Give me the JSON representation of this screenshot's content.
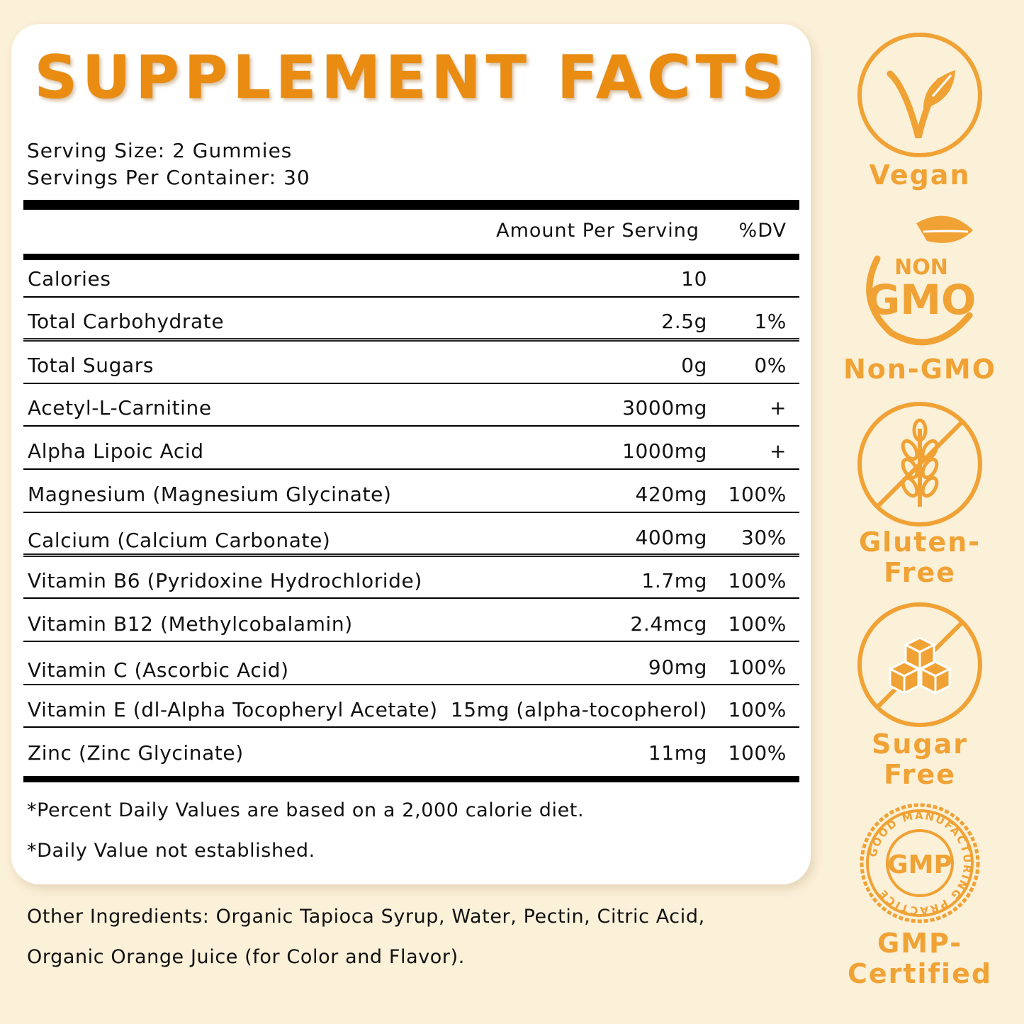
{
  "title": "SUPPLEMENT FACTS",
  "serving_size": "Serving Size: 2 Gummies",
  "servings_per_container": "Servings Per Container: 30",
  "header": {
    "amount": "Amount Per Serving",
    "dv": "%DV"
  },
  "rows": [
    {
      "name": "Calories",
      "amount": "10",
      "dv": ""
    },
    {
      "name": "Total Carbohydrate",
      "amount": "2.5g",
      "dv": "1%"
    },
    {
      "name": "Total Sugars",
      "amount": "0g",
      "dv": "0%"
    },
    {
      "name": "Acetyl-L-Carnitine",
      "amount": "3000mg",
      "dv": "+"
    },
    {
      "name": "Alpha Lipoic Acid",
      "amount": "1000mg",
      "dv": "+"
    },
    {
      "name": "Magnesium (Magnesium Glycinate)",
      "amount": "420mg",
      "dv": "100%"
    },
    {
      "name": "Calcium (Calcium Carbonate)",
      "amount": "400mg",
      "dv": "30%"
    },
    {
      "name": "Vitamin B6 (Pyridoxine Hydrochloride)",
      "amount": "1.7mg",
      "dv": "100%"
    },
    {
      "name": "Vitamin B12 (Methylcobalamin)",
      "amount": "2.4mcg",
      "dv": "100%"
    },
    {
      "name": "Vitamin C (Ascorbic Acid)",
      "amount": "90mg",
      "dv": "100%"
    },
    {
      "name": "Vitamin E (dl-Alpha Tocopheryl Acetate)",
      "amount": "15mg (alpha-tocopherol)",
      "dv": "100%"
    },
    {
      "name": "Zinc (Zinc Glycinate)",
      "amount": "11mg",
      "dv": "100%"
    }
  ],
  "footnotes": [
    "*Percent Daily Values are based on a 2,000 calorie diet.",
    "*Daily Value not established."
  ],
  "other_ingredients": [
    "Other Ingredients: Organic Tapioca Syrup, Water, Pectin, Citric Acid,",
    "Organic Orange Juice (for Color and Flavor)."
  ],
  "badges": [
    {
      "label": "Vegan",
      "icon": "vegan-leaf-icon"
    },
    {
      "label": "Non-GMO",
      "icon": "non-gmo-icon",
      "text_top": "NON",
      "text_main": "GMO"
    },
    {
      "label_line1": "Gluten-",
      "label_line2": "Free",
      "icon": "gluten-free-wheat-icon"
    },
    {
      "label_line1": "Sugar",
      "label_line2": "Free",
      "icon": "sugar-free-cubes-icon"
    },
    {
      "label_line1": "GMP-",
      "label_line2": "Certified",
      "icon": "gmp-seal-icon",
      "seal_center": "GMP",
      "seal_ring": "GOOD MANUFACTURING PRACTICE"
    }
  ],
  "colors": {
    "accent": "#f0a235",
    "title": "#e98c11",
    "background": "#fbf0d8"
  }
}
